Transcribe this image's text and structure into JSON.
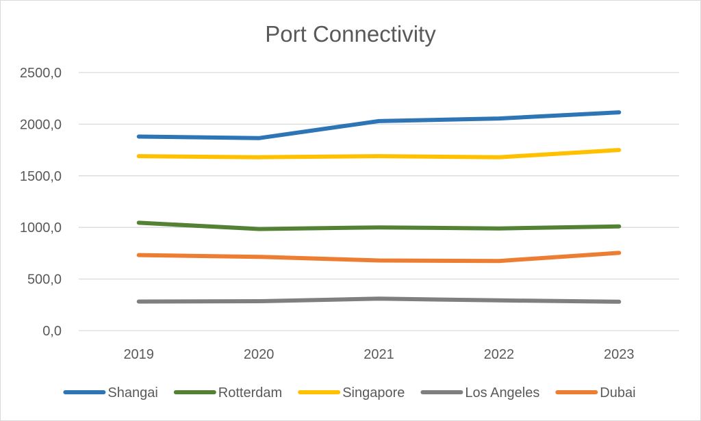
{
  "chart_data": {
    "type": "line",
    "title": "Port Connectivity",
    "xlabel": "",
    "ylabel": "",
    "categories": [
      "2019",
      "2020",
      "2021",
      "2022",
      "2023"
    ],
    "ylim": [
      0,
      2500
    ],
    "y_ticks": [
      "0,0",
      "500,0",
      "1000,0",
      "1500,0",
      "2000,0",
      "2500,0"
    ],
    "grid": "horizontal",
    "legend_position": "bottom",
    "series": [
      {
        "name": "Shangai",
        "color": "#2e75b6",
        "values": [
          1880,
          1865,
          2030,
          2055,
          2115
        ]
      },
      {
        "name": "Rotterdam",
        "color": "#548235",
        "values": [
          1045,
          985,
          1000,
          990,
          1010
        ]
      },
      {
        "name": "Singapore",
        "color": "#ffc000",
        "values": [
          1690,
          1680,
          1690,
          1680,
          1750
        ]
      },
      {
        "name": "Los Angeles",
        "color": "#7f7f7f",
        "values": [
          282,
          285,
          310,
          293,
          280
        ]
      },
      {
        "name": "Dubai",
        "color": "#ed7d31",
        "values": [
          732,
          715,
          680,
          675,
          753
        ]
      }
    ]
  }
}
